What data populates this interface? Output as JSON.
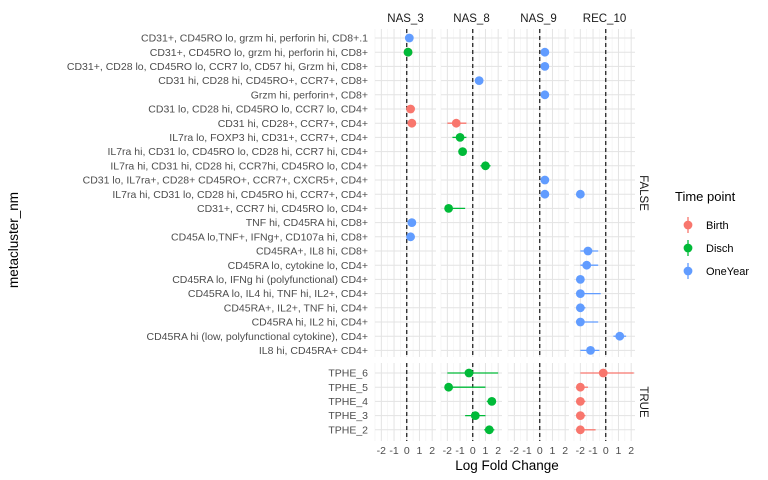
{
  "chart_data": {
    "type": "scatter",
    "subtype": "faceted dot plot with error bars",
    "xlabel": "Log Fold Change",
    "ylabel": "metacluster_nm",
    "xlim": [
      -2.5,
      2.3
    ],
    "x_ticks": [
      -2,
      -1,
      0,
      1,
      2
    ],
    "reference_line_x": 0,
    "grid": true,
    "legend": {
      "title": "Time point",
      "position": "right",
      "items": [
        {
          "name": "Birth",
          "color": "#F8766D"
        },
        {
          "name": "Disch",
          "color": "#00BA38"
        },
        {
          "name": "OneYear",
          "color": "#619CFF"
        }
      ]
    },
    "col_facets": [
      "NAS_3",
      "NAS_8",
      "NAS_9",
      "REC_10"
    ],
    "row_facets": [
      {
        "label": "FALSE",
        "categories": [
          "CD31+, CD45RO lo, grzm hi, perforin hi, CD8+.1",
          "CD31+, CD45RO lo, grzm hi, perforin hi, CD8+",
          "CD31+, CD28 lo, CD45RO lo, CCR7 lo, CD57 hi, Grzm hi, CD8+",
          "CD31 hi, CD28 hi, CD45RO+, CCR7+, CD8+",
          "Grzm hi, perforin+, CD8+",
          "CD31 lo, CD28 hi, CD45RO lo, CCR7 lo, CD4+",
          "CD31 hi, CD28+, CCR7+, CD4+",
          "IL7ra lo, FOXP3 hi, CD31+, CCR7+, CD4+",
          "IL7ra hi, CD31 lo, CD45RO lo, CD28 hi, CCR7 hi, CD4+",
          "IL7ra hi, CD31 hi, CD28 hi, CCR7hi, CD45RO lo, CD4+",
          "CD31 lo, IL7ra+, CD28+ CD45RO+, CCR7+, CXCR5+, CD4+",
          "IL7ra hi, CD31 lo, CD28 hi, CD45RO hi, CCR7+, CD4+",
          "CD31+, CCR7 hi, CD45RO lo, CD4+",
          "TNF hi, CD45RA hi, CD8+",
          "CD45A lo,TNF+, IFNg+, CD107a hi, CD8+",
          "CD45RA+, IL8 hi, CD8+",
          "CD45RA lo, cytokine lo, CD4+",
          "CD45RA lo, IFNg hi (polyfunctional) CD4+",
          "CD45RA lo, IL4 hi, TNF hi, IL2+, CD4+",
          "CD45RA+, IL2+, TNF hi, CD4+",
          "CD45RA hi, IL2 hi, CD4+",
          "CD45RA hi (low, polyfunctional cytokine), CD4+",
          "IL8 hi, CD45RA+ CD4+"
        ]
      },
      {
        "label": "TRUE",
        "categories": [
          "TPHE_6",
          "TPHE_5",
          "TPHE_4",
          "TPHE_3",
          "TPHE_2"
        ]
      }
    ],
    "points": [
      {
        "facet": "NAS_3",
        "row": "CD31+, CD45RO lo, grzm hi, perforin hi, CD8+.1",
        "series": "OneYear",
        "x": 0.2,
        "lo": 0.2,
        "hi": 0.2
      },
      {
        "facet": "NAS_3",
        "row": "CD31+, CD45RO lo, grzm hi, perforin hi, CD8+",
        "series": "Birth",
        "x": 0.1,
        "lo": 0.1,
        "hi": 0.1
      },
      {
        "facet": "NAS_3",
        "row": "CD31+, CD45RO lo, grzm hi, perforin hi, CD8+",
        "series": "Disch",
        "x": 0.1,
        "lo": 0.1,
        "hi": 0.1
      },
      {
        "facet": "NAS_3",
        "row": "CD31 lo, CD28 hi, CD45RO lo, CCR7 lo, CD4+",
        "series": "Birth",
        "x": 0.3,
        "lo": 0.3,
        "hi": 0.3
      },
      {
        "facet": "NAS_3",
        "row": "CD31 hi, CD28+, CCR7+, CD4+",
        "series": "Birth",
        "x": 0.4,
        "lo": 0.4,
        "hi": 0.4
      },
      {
        "facet": "NAS_3",
        "row": "TNF hi, CD45RA hi, CD8+",
        "series": "OneYear",
        "x": 0.4,
        "lo": 0.4,
        "hi": 0.4
      },
      {
        "facet": "NAS_3",
        "row": "CD45A lo,TNF+, IFNg+, CD107a hi, CD8+",
        "series": "OneYear",
        "x": 0.3,
        "lo": 0.3,
        "hi": 0.3
      },
      {
        "facet": "NAS_8",
        "row": "CD31 hi, CD28+, CCR7+, CD4+",
        "series": "Birth",
        "x": -1.3,
        "lo": -2.0,
        "hi": -0.5
      },
      {
        "facet": "NAS_8",
        "row": "IL7ra lo, FOXP3 hi, CD31+, CCR7+, CD4+",
        "series": "Disch",
        "x": -1.0,
        "lo": -1.6,
        "hi": -0.5
      },
      {
        "facet": "NAS_8",
        "row": "IL7ra hi, CD31 lo, CD45RO lo, CD28 hi, CCR7 hi, CD4+",
        "series": "Disch",
        "x": -0.8,
        "lo": -1.0,
        "hi": -0.6
      },
      {
        "facet": "NAS_8",
        "row": "IL7ra hi, CD31 hi, CD28 hi, CCR7hi, CD45RO lo, CD4+",
        "series": "Disch",
        "x": 1.0,
        "lo": 0.6,
        "hi": 1.4
      },
      {
        "facet": "NAS_8",
        "row": "CD31 hi, CD28 hi, CD45RO+, CCR7+, CD8+",
        "series": "OneYear",
        "x": 0.5,
        "lo": 0.5,
        "hi": 0.5
      },
      {
        "facet": "NAS_8",
        "row": "CD31+, CCR7 hi, CD45RO lo, CD4+",
        "series": "Disch",
        "x": -1.9,
        "lo": -2.0,
        "hi": -0.6
      },
      {
        "facet": "NAS_8",
        "row": "TPHE_6",
        "series": "Disch",
        "x": -0.3,
        "lo": -2.0,
        "hi": 2.0
      },
      {
        "facet": "NAS_8",
        "row": "TPHE_5",
        "series": "Disch",
        "x": -1.9,
        "lo": -2.0,
        "hi": 1.0
      },
      {
        "facet": "NAS_8",
        "row": "TPHE_4",
        "series": "Disch",
        "x": 1.5,
        "lo": 1.1,
        "hi": 1.8
      },
      {
        "facet": "NAS_8",
        "row": "TPHE_3",
        "series": "Disch",
        "x": 0.2,
        "lo": -0.6,
        "hi": 1.0
      },
      {
        "facet": "NAS_8",
        "row": "TPHE_2",
        "series": "Disch",
        "x": 1.3,
        "lo": 0.9,
        "hi": 1.7
      },
      {
        "facet": "NAS_9",
        "row": "CD31+, CD45RO lo, grzm hi, perforin hi, CD8+",
        "series": "OneYear",
        "x": 0.4,
        "lo": 0.4,
        "hi": 0.4
      },
      {
        "facet": "NAS_9",
        "row": "CD31+, CD28 lo, CD45RO lo, CCR7 lo, CD57 hi, Grzm hi, CD8+",
        "series": "OneYear",
        "x": 0.4,
        "lo": 0.4,
        "hi": 0.4
      },
      {
        "facet": "NAS_9",
        "row": "Grzm hi, perforin+, CD8+",
        "series": "OneYear",
        "x": 0.4,
        "lo": 0.4,
        "hi": 0.4
      },
      {
        "facet": "NAS_9",
        "row": "CD31 lo, IL7ra+, CD28+ CD45RO+, CCR7+, CXCR5+, CD4+",
        "series": "OneYear",
        "x": 0.4,
        "lo": 0.4,
        "hi": 0.4
      },
      {
        "facet": "NAS_9",
        "row": "IL7ra hi, CD31 lo, CD28 hi, CD45RO hi, CCR7+, CD4+",
        "series": "OneYear",
        "x": 0.4,
        "lo": 0.4,
        "hi": 0.4
      },
      {
        "facet": "REC_10",
        "row": "IL7ra hi, CD31 lo, CD28 hi, CD45RO hi, CCR7+, CD4+",
        "series": "OneYear",
        "x": -2.0,
        "lo": -2.0,
        "hi": -2.0
      },
      {
        "facet": "REC_10",
        "row": "CD45RA+, IL8 hi, CD8+",
        "series": "OneYear",
        "x": -1.4,
        "lo": -2.0,
        "hi": -0.6
      },
      {
        "facet": "REC_10",
        "row": "CD45RA lo, cytokine lo, CD4+",
        "series": "OneYear",
        "x": -1.5,
        "lo": -2.0,
        "hi": -0.6
      },
      {
        "facet": "REC_10",
        "row": "CD45RA lo, IFNg hi (polyfunctional) CD4+",
        "series": "OneYear",
        "x": -2.0,
        "lo": -2.0,
        "hi": -1.8
      },
      {
        "facet": "REC_10",
        "row": "CD45RA lo, IL4 hi, TNF hi, IL2+, CD4+",
        "series": "OneYear",
        "x": -2.0,
        "lo": -2.0,
        "hi": -0.4
      },
      {
        "facet": "REC_10",
        "row": "CD45RA+, IL2+, TNF hi, CD4+",
        "series": "OneYear",
        "x": -2.0,
        "lo": -2.0,
        "hi": -1.6
      },
      {
        "facet": "REC_10",
        "row": "CD45RA hi, IL2 hi, CD4+",
        "series": "OneYear",
        "x": -2.0,
        "lo": -2.0,
        "hi": -0.6
      },
      {
        "facet": "REC_10",
        "row": "CD45RA hi (low, polyfunctional cytokine), CD4+",
        "series": "OneYear",
        "x": 1.1,
        "lo": 0.6,
        "hi": 1.6
      },
      {
        "facet": "REC_10",
        "row": "IL8 hi, CD45RA+ CD4+",
        "series": "OneYear",
        "x": -1.2,
        "lo": -2.0,
        "hi": -0.5
      },
      {
        "facet": "REC_10",
        "row": "TPHE_6",
        "series": "Birth",
        "x": -0.2,
        "lo": -2.0,
        "hi": 2.2
      },
      {
        "facet": "REC_10",
        "row": "TPHE_5",
        "series": "Birth",
        "x": -2.0,
        "lo": -2.0,
        "hi": -1.4
      },
      {
        "facet": "REC_10",
        "row": "TPHE_4",
        "series": "Birth",
        "x": -2.0,
        "lo": -2.0,
        "hi": -1.6
      },
      {
        "facet": "REC_10",
        "row": "TPHE_3",
        "series": "Birth",
        "x": -2.0,
        "lo": -2.0,
        "hi": -1.6
      },
      {
        "facet": "REC_10",
        "row": "TPHE_2",
        "series": "Birth",
        "x": -2.0,
        "lo": -2.0,
        "hi": -0.8
      }
    ]
  }
}
